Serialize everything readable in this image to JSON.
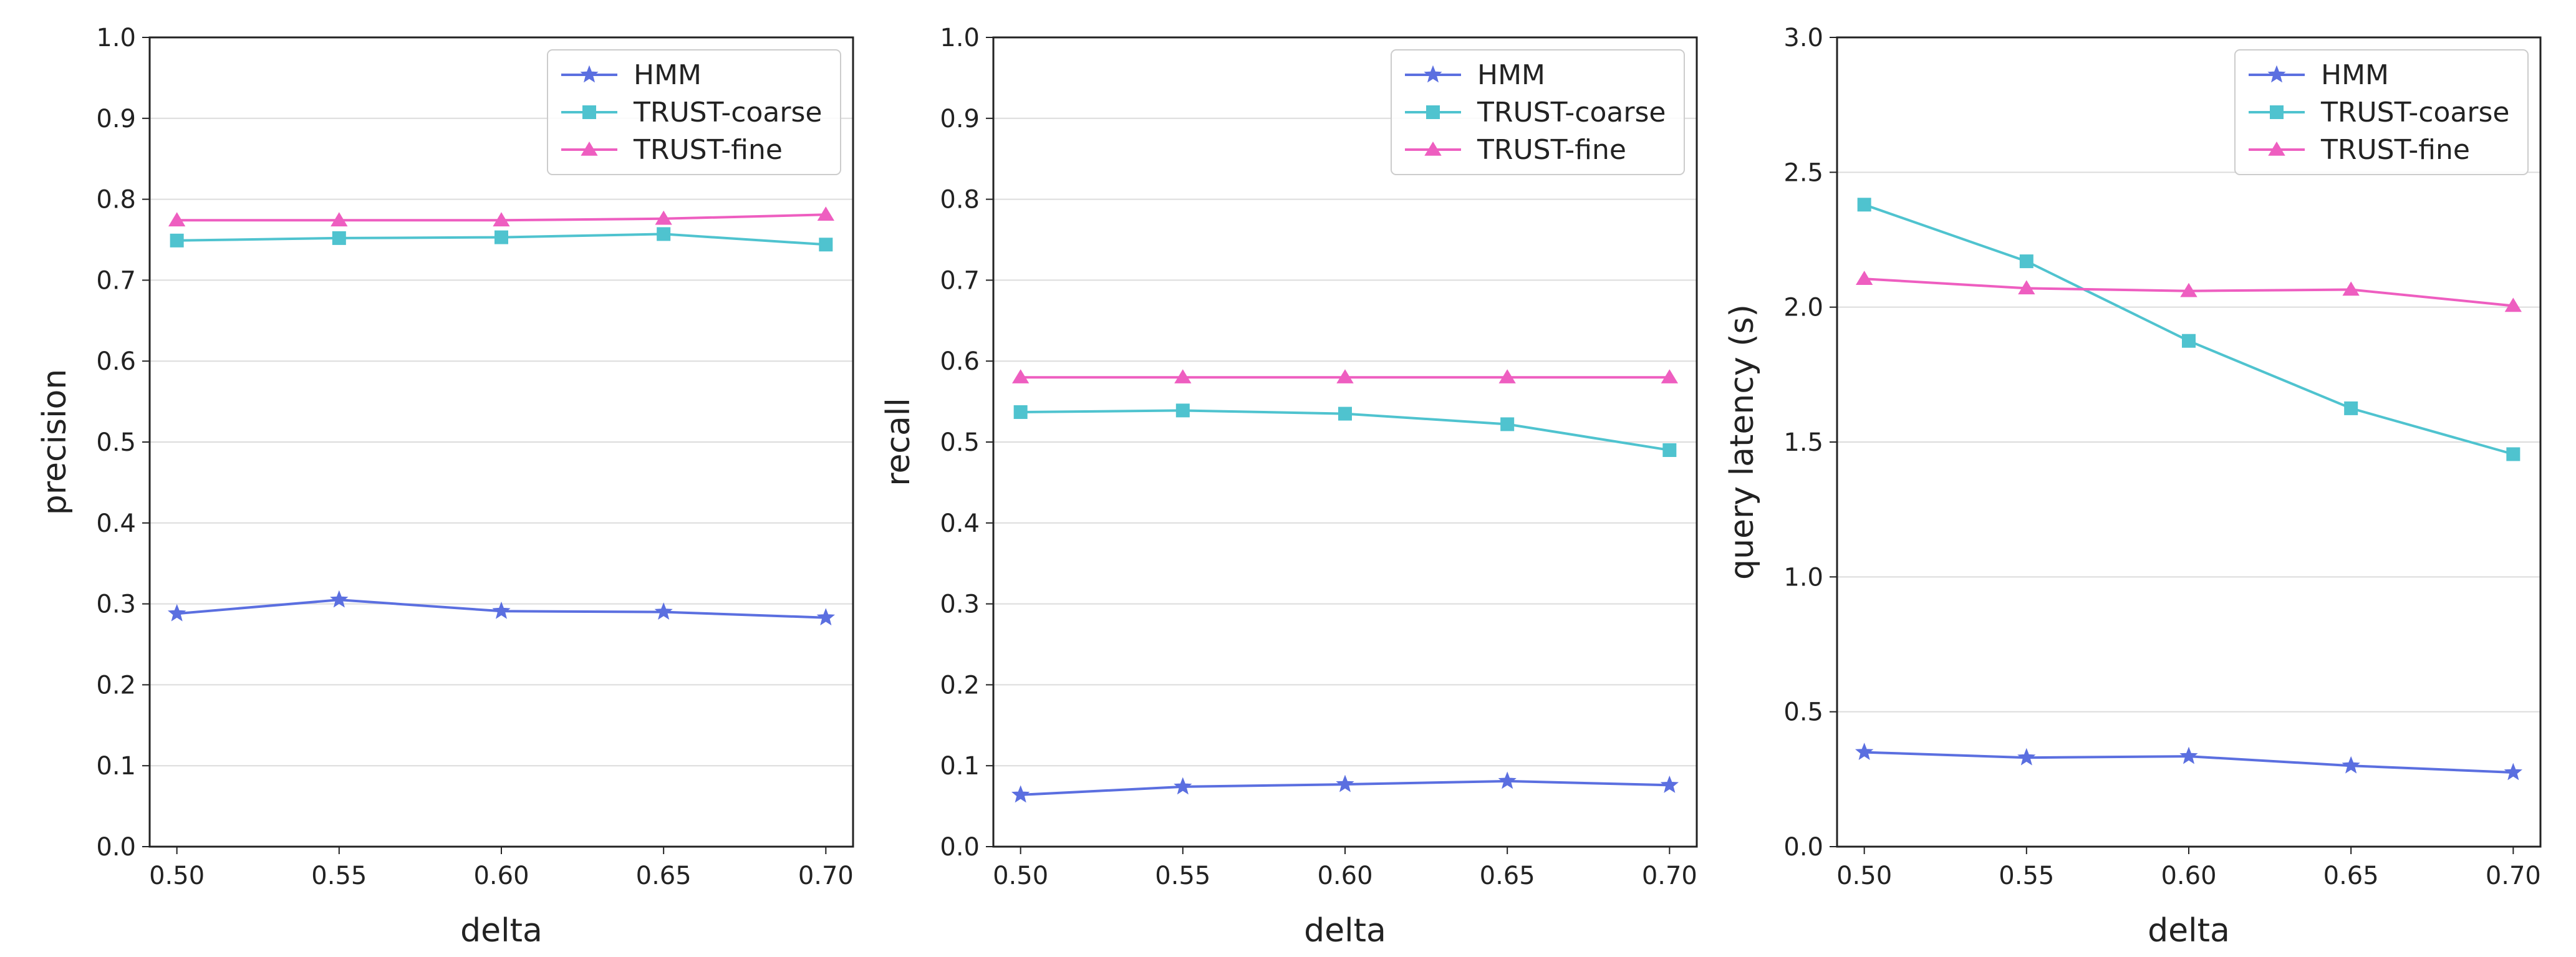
{
  "figure": {
    "panel_count": 3
  },
  "colors": {
    "HMM": "#5b6fe0",
    "TRUST-coarse": "#4fc3cf",
    "TRUST-fine": "#ee5ec0",
    "grid": "#dcdcdc",
    "axis": "#222222"
  },
  "chart_data": [
    {
      "type": "line",
      "title": "",
      "xlabel": "delta",
      "ylabel": "precision",
      "x": [
        0.5,
        0.55,
        0.6,
        0.65,
        0.7
      ],
      "xticks": [
        "0.50",
        "0.55",
        "0.60",
        "0.65",
        "0.70"
      ],
      "ylim": [
        0.0,
        1.0
      ],
      "yticks": [
        "0.0",
        "0.1",
        "0.2",
        "0.3",
        "0.4",
        "0.5",
        "0.6",
        "0.7",
        "0.8",
        "0.9",
        "1.0"
      ],
      "grid": "horizontal",
      "legend": "top-right",
      "series": [
        {
          "name": "HMM",
          "marker": "star",
          "values": [
            0.288,
            0.305,
            0.291,
            0.29,
            0.283
          ]
        },
        {
          "name": "TRUST-coarse",
          "marker": "square",
          "values": [
            0.749,
            0.752,
            0.753,
            0.757,
            0.744
          ]
        },
        {
          "name": "TRUST-fine",
          "marker": "triangle",
          "values": [
            0.774,
            0.774,
            0.774,
            0.776,
            0.781
          ]
        }
      ]
    },
    {
      "type": "line",
      "title": "",
      "xlabel": "delta",
      "ylabel": "recall",
      "x": [
        0.5,
        0.55,
        0.6,
        0.65,
        0.7
      ],
      "xticks": [
        "0.50",
        "0.55",
        "0.60",
        "0.65",
        "0.70"
      ],
      "ylim": [
        0.0,
        1.0
      ],
      "yticks": [
        "0.0",
        "0.1",
        "0.2",
        "0.3",
        "0.4",
        "0.5",
        "0.6",
        "0.7",
        "0.8",
        "0.9",
        "1.0"
      ],
      "grid": "horizontal",
      "legend": "top-right",
      "series": [
        {
          "name": "HMM",
          "marker": "star",
          "values": [
            0.064,
            0.074,
            0.077,
            0.081,
            0.076
          ]
        },
        {
          "name": "TRUST-coarse",
          "marker": "square",
          "values": [
            0.537,
            0.539,
            0.535,
            0.522,
            0.49
          ]
        },
        {
          "name": "TRUST-fine",
          "marker": "triangle",
          "values": [
            0.58,
            0.58,
            0.58,
            0.58,
            0.58
          ]
        }
      ]
    },
    {
      "type": "line",
      "title": "",
      "xlabel": "delta",
      "ylabel": "query latency (s)",
      "x": [
        0.5,
        0.55,
        0.6,
        0.65,
        0.7
      ],
      "xticks": [
        "0.50",
        "0.55",
        "0.60",
        "0.65",
        "0.70"
      ],
      "ylim": [
        0.0,
        3.0
      ],
      "yticks": [
        "0.0",
        "0.5",
        "1.0",
        "1.5",
        "2.0",
        "2.5",
        "3.0"
      ],
      "grid": "horizontal",
      "legend": "top-right",
      "series": [
        {
          "name": "HMM",
          "marker": "star",
          "values": [
            0.35,
            0.33,
            0.335,
            0.3,
            0.275
          ]
        },
        {
          "name": "TRUST-coarse",
          "marker": "square",
          "values": [
            2.38,
            2.17,
            1.875,
            1.625,
            1.455
          ]
        },
        {
          "name": "TRUST-fine",
          "marker": "triangle",
          "values": [
            2.105,
            2.07,
            2.06,
            2.065,
            2.005
          ]
        }
      ]
    }
  ]
}
